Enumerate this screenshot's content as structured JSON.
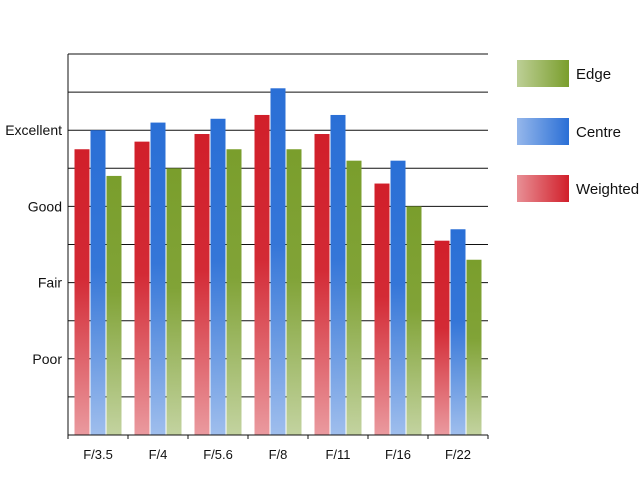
{
  "chart_data": {
    "type": "bar",
    "categories": [
      "F/3.5",
      "F/4",
      "F/5.6",
      "F/8",
      "F/11",
      "F/16",
      "F/22"
    ],
    "y_tick_labels": [
      "Poor",
      "Good",
      "Fair",
      "Excellent"
    ],
    "y_tick_labels_ordered": [
      {
        "label": "Poor",
        "value": 2
      },
      {
        "label": "Fair",
        "value": 4
      },
      {
        "label": "Good",
        "value": 6
      },
      {
        "label": "Excellent",
        "value": 8
      }
    ],
    "ylim": [
      0,
      10
    ],
    "grid": true,
    "legend_position": "right",
    "series": [
      {
        "name": "Weighted",
        "color": "#d11f2a",
        "values": [
          7.5,
          7.7,
          7.9,
          8.4,
          7.9,
          6.6,
          5.1
        ]
      },
      {
        "name": "Centre",
        "color": "#2a6fd6",
        "values": [
          8.0,
          8.2,
          8.3,
          9.1,
          8.4,
          7.2,
          5.4
        ]
      },
      {
        "name": "Edge",
        "color": "#7a9e2c",
        "values": [
          6.8,
          7.0,
          7.5,
          7.5,
          7.2,
          6.0,
          4.6
        ]
      }
    ],
    "legend": [
      {
        "name": "Edge",
        "color": "#7a9e2c"
      },
      {
        "name": "Centre",
        "color": "#2a6fd6"
      },
      {
        "name": "Weighted",
        "color": "#d11f2a"
      }
    ]
  }
}
